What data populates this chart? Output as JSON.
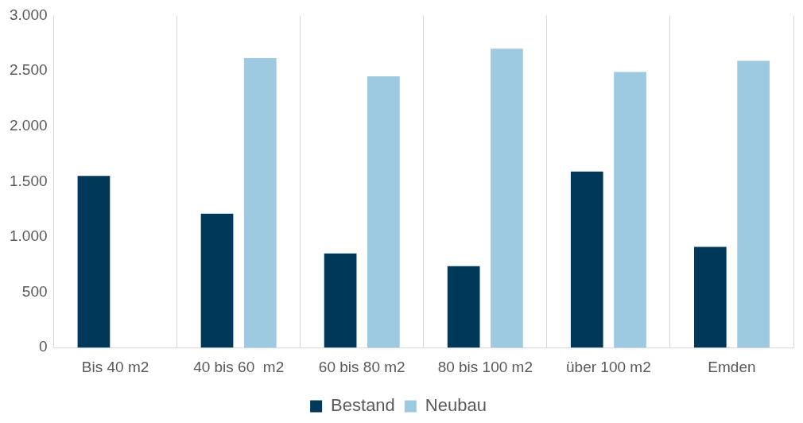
{
  "chart_data": {
    "type": "bar",
    "categories": [
      "Bis 40 m2",
      "40 bis 60  m2",
      "60 bis 80 m2",
      "80 bis 100 m2",
      "über 100 m2",
      "Emden"
    ],
    "series": [
      {
        "name": "Bestand",
        "color": "#003859",
        "values": [
          1550,
          1210,
          850,
          735,
          1590,
          910
        ]
      },
      {
        "name": "Neubau",
        "color": "#9ecae1",
        "values": [
          null,
          2615,
          2450,
          2700,
          2490,
          2590
        ]
      }
    ],
    "ylim": [
      0,
      3000
    ],
    "yticks": [
      {
        "value": 0,
        "label": "0"
      },
      {
        "value": 500,
        "label": "500"
      },
      {
        "value": 1000,
        "label": "1.000"
      },
      {
        "value": 1500,
        "label": "1.500"
      },
      {
        "value": 2000,
        "label": "2.000"
      },
      {
        "value": 2500,
        "label": "2.500"
      },
      {
        "value": 3000,
        "label": "3.000"
      }
    ],
    "grid": "x",
    "legend": "bottom"
  }
}
